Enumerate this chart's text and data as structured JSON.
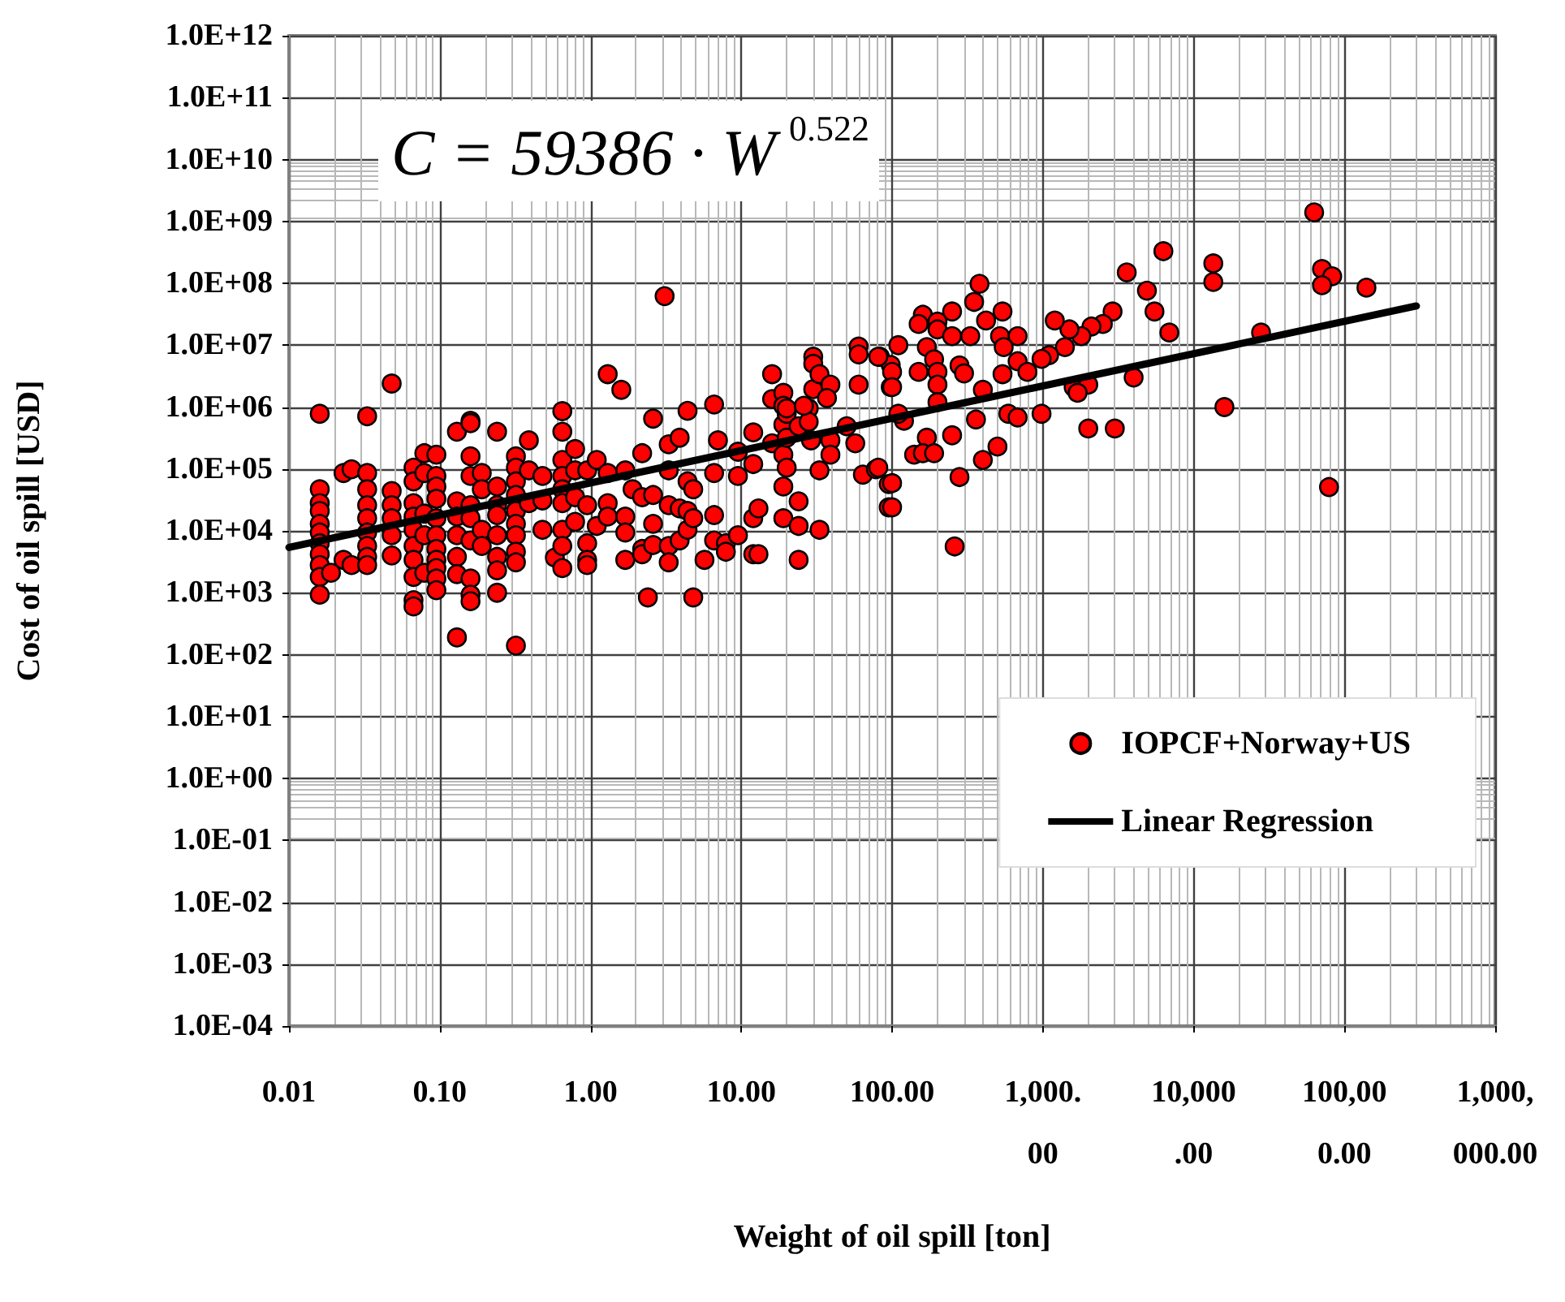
{
  "chart_data": {
    "type": "scatter",
    "xlabel": "Weight of oil spill [ton]",
    "ylabel": "Cost of oil spill [USD]",
    "annotations": [
      "C = 59386 · W$^{0.522}$"
    ],
    "log": "xy",
    "grid": true,
    "legend": "right",
    "marker": "circle",
    "xlim": [
      0.01,
      1000000
    ],
    "ylim": [
      0.0001,
      1000000000000
    ],
    "xticks": [
      0.01,
      {
        "value": 0.1,
        "label": "0.10"
      },
      {
        "value": 1,
        "label": "1.00"
      },
      {
        "value": 10,
        "label": "10.00"
      },
      {
        "value": 100,
        "label": "100.00"
      },
      {
        "value": 1000,
        "label": "1,000.00"
      },
      {
        "value": 10000,
        "label": "10,000.00"
      },
      {
        "value": 100000,
        "label": "100,000.00"
      },
      {
        "value": 1000000,
        "label": "1,000,000.00"
      }
    ],
    "yticks": [
      {
        "value": 0.0001,
        "label": "1.0E-04"
      },
      {
        "value": 0.001,
        "label": "1.0E-03"
      },
      {
        "value": 0.01,
        "label": "1.0E-02"
      },
      {
        "value": 0.1,
        "label": "1.0E-01"
      },
      {
        "value": 1,
        "label": "1.0E+00"
      },
      {
        "value": 10,
        "label": "1.0E+01"
      },
      {
        "value": 100,
        "label": "1.0E+02"
      },
      {
        "value": 1000,
        "label": "1.0E+03"
      },
      {
        "value": 10000,
        "label": "1.0E+04"
      },
      {
        "value": 100000,
        "label": "1.0E+05"
      },
      {
        "value": 1000000,
        "label": "1.0E+06"
      },
      {
        "value": 10000000,
        "label": "1.0E+07"
      },
      {
        "value": 100000000,
        "label": "1.0E+08"
      },
      {
        "value": 1000000000,
        "label": "1.0E+09"
      },
      {
        "value": 10000000000,
        "label": "1.0E+10"
      },
      {
        "value": 100000000000,
        "label": "1.0E+11"
      },
      {
        "value": 1000000000000,
        "label": "1.0E+12"
      }
    ],
    "series": [
      {
        "name": "IOPCF+Norway+US",
        "color": "#ff0000",
        "x": [
          0.016,
          0.016,
          0.016,
          0.016,
          0.016,
          0.016,
          0.016,
          0.016,
          0.016,
          0.016,
          0.016,
          0.023,
          0.023,
          0.026,
          0.026,
          0.019,
          0.033,
          0.033,
          0.033,
          0.033,
          0.033,
          0.033,
          0.033,
          0.033,
          0.033,
          0.048,
          0.048,
          0.048,
          0.048,
          0.048,
          0.048,
          0.067,
          0.067,
          0.067,
          0.067,
          0.067,
          0.067,
          0.067,
          0.067,
          0.067,
          0.067,
          0.079,
          0.079,
          0.079,
          0.079,
          0.079,
          0.095,
          0.095,
          0.095,
          0.095,
          0.095,
          0.095,
          0.095,
          0.095,
          0.095,
          0.095,
          0.095,
          0.13,
          0.13,
          0.13,
          0.13,
          0.13,
          0.13,
          0.13,
          0.16,
          0.16,
          0.16,
          0.16,
          0.16,
          0.16,
          0.16,
          0.16,
          0.16,
          0.16,
          0.19,
          0.19,
          0.19,
          0.19,
          0.24,
          0.24,
          0.24,
          0.24,
          0.24,
          0.24,
          0.24,
          0.24,
          0.32,
          0.32,
          0.32,
          0.32,
          0.32,
          0.32,
          0.32,
          0.32,
          0.32,
          0.32,
          0.39,
          0.39,
          0.39,
          0.48,
          0.48,
          0.48,
          0.58,
          0.65,
          0.65,
          0.65,
          0.65,
          0.65,
          0.65,
          0.65,
          0.65,
          0.65,
          0.79,
          0.79,
          0.79,
          0.79,
          0.95,
          0.95,
          0.95,
          0.95,
          0.95,
          1.1,
          1.1,
          1.3,
          1.3,
          1.3,
          1.3,
          1.6,
          1.7,
          1.7,
          1.7,
          1.7,
          1.9,
          2.2,
          2.2,
          2.2,
          2.2,
          2.4,
          2.6,
          2.6,
          2.6,
          2.6,
          3.3,
          3.3,
          3.3,
          3.3,
          3.3,
          3.1,
          3.9,
          3.9,
          3.9,
          4.4,
          4.4,
          4.4,
          4.4,
          4.8,
          4.8,
          4.8,
          5.7,
          6.6,
          6.6,
          6.6,
          6.6,
          7,
          7.9,
          7.9,
          9.5,
          9.5,
          9.5,
          12,
          12,
          12,
          12,
          13,
          13,
          16,
          16,
          16,
          19,
          19,
          19,
          19,
          19,
          19,
          20,
          20,
          20,
          24,
          24,
          24,
          24,
          28,
          28,
          29,
          30,
          30,
          30,
          33,
          33,
          33,
          39,
          39,
          39,
          37,
          50,
          57,
          64,
          78,
          95,
          95,
          60,
          60,
          60,
          83,
          98,
          98,
          20,
          26,
          63000,
          71000,
          83000,
          71000,
          140000,
          13500,
          13500,
          6300,
          3600,
          4900,
          5500,
          6900,
          2900,
          2500,
          2100,
          1800,
          1500,
          1200,
          1400,
          1100,
          980,
          28000,
          4000,
          1600,
          2000,
          1700,
          16000,
          380,
          350,
          250,
          160,
          150,
          200,
          200,
          250,
          330,
          420,
          540,
          520,
          680,
          550,
          110,
          170,
          190,
          280,
          300,
          150,
          200,
          200,
          200,
          540,
          680,
          790,
          400,
          100,
          100,
          81,
          360,
          250,
          170,
          140,
          160,
          190,
          400,
          500,
          590,
          680,
          980,
          2000,
          3000,
          79000,
          280,
          100,
          100,
          260,
          81,
          120,
          110
        ],
        "values": [
          780000,
          47000,
          28000,
          21000,
          13000,
          9400,
          6300,
          4200,
          2800,
          1800,
          930,
          86000,
          3400,
          99000,
          2800,
          2100,
          710000,
          86000,
          47000,
          26000,
          16000,
          9400,
          5700,
          3800,
          2800,
          2400000,
          44000,
          26000,
          16000,
          8500,
          4000,
          105000,
          63000,
          28000,
          17000,
          10400,
          5700,
          3400,
          1800,
          760,
          600,
          180000,
          86000,
          19000,
          8500,
          2100,
          170000,
          77000,
          52000,
          33000,
          16000,
          8500,
          5100,
          3400,
          2500,
          1700,
          1100,
          400000,
          30000,
          17000,
          8500,
          3800,
          2000,
          190,
          600000,
          550000,
          160000,
          77000,
          26000,
          16000,
          7000,
          1700,
          930,
          730,
          86000,
          47000,
          10400,
          5700,
          400000,
          52000,
          26000,
          18000,
          8500,
          3800,
          2300,
          1000,
          160000,
          105000,
          63000,
          38000,
          21000,
          13000,
          8500,
          4600,
          3100,
          140,
          290000,
          95000,
          28000,
          77000,
          31000,
          10400,
          3700,
          860000,
          400000,
          140000,
          77000,
          47000,
          28000,
          10400,
          5700,
          2500,
          210000,
          95000,
          35000,
          14000,
          95000,
          26000,
          6300,
          3400,
          2800,
          140000,
          12000,
          3400000,
          86000,
          28000,
          17000,
          1900000,
          95000,
          17000,
          9400,
          3400,
          47000,
          180000,
          35000,
          5100,
          4200,
          840,
          650000,
          38000,
          13000,
          5900,
          250000,
          95000,
          26000,
          5700,
          3100,
          62000000,
          320000,
          23000,
          7000,
          870000,
          63000,
          21000,
          10400,
          47000,
          16000,
          840,
          3400,
          1100000,
          86000,
          18000,
          7000,
          290000,
          6300,
          4600,
          190000,
          77000,
          8500,
          390000,
          120000,
          16000,
          4200,
          23000,
          4200,
          3400000,
          1350000,
          260000,
          1700000,
          1050000,
          520000,
          170000,
          52000,
          16000,
          780000,
          320000,
          105000,
          490000,
          30000,
          12000,
          3400,
          950000,
          580000,
          290000,
          6500000,
          5000000,
          1950000,
          95000,
          10400,
          3400000,
          2300000,
          290000,
          170000,
          1400000,
          490000,
          260000,
          81000,
          99000,
          57000,
          24000,
          9500000,
          7100000,
          2300000,
          6500000,
          2100000,
          4800000,
          950000,
          1050000,
          1400000000,
          170000000,
          130000000,
          93000000,
          85000000,
          210000000,
          105000000,
          330000000,
          150000000,
          76000000,
          35000000,
          16000000,
          35000000,
          22000000,
          20000000,
          14000000,
          18000000,
          25000000,
          9300000,
          6900000,
          6000000,
          16000000,
          3000000,
          2100000,
          2300000,
          1700000,
          1000000,
          98000000,
          50000000,
          35000000,
          31000000,
          22000000,
          24000000,
          18000000,
          14000000,
          14000000,
          25000000,
          35000000,
          14000000,
          14000000,
          9300000,
          10000000,
          9300000,
          5900000,
          4700000,
          3500000,
          3700000,
          3700000,
          2300000,
          1200000,
          3400000,
          5500000,
          3700000,
          1900000,
          3700000,
          2100000,
          6500000,
          630000,
          350000,
          320000,
          170000,
          180000,
          180000,
          140000,
          230000,
          780000,
          680000,
          780000,
          450000,
          450000,
          51000,
          74000,
          59000,
          24000,
          5600,
          105000,
          600000,
          780000
        ]
      },
      {
        "name": "Linear Regression",
        "type": "line",
        "color": "#000000",
        "marker": "none",
        "line_style": "solid",
        "x": [
          0.01,
          300000
        ],
        "values": [
          5400,
          43000000
        ]
      }
    ]
  }
}
